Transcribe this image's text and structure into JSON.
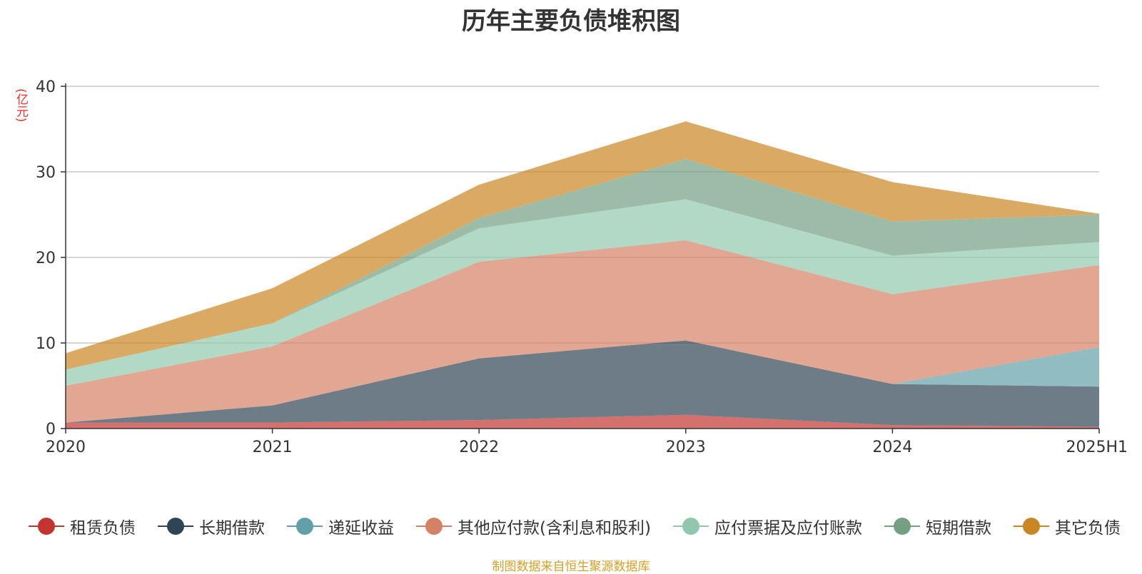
{
  "chart_data": {
    "type": "area",
    "stacked": true,
    "title": "历年主要负债堆积图",
    "unit_label": "(亿元)",
    "categories": [
      "2020",
      "2021",
      "2022",
      "2023",
      "2024",
      "2025H1"
    ],
    "ylim": [
      0,
      40
    ],
    "yticks": [
      0,
      10,
      20,
      30,
      40
    ],
    "grid": true,
    "legend_position": "bottom",
    "series": [
      {
        "name": "租赁负债",
        "color": "#c23531",
        "values": [
          0.7,
          0.7,
          1.0,
          1.6,
          0.4,
          0.2
        ]
      },
      {
        "name": "长期借款",
        "color": "#2f4554",
        "values": [
          0.0,
          2.0,
          7.2,
          8.7,
          4.8,
          4.7
        ]
      },
      {
        "name": "递延收益",
        "color": "#61a0a8",
        "values": [
          0.0,
          0.0,
          0.0,
          0.0,
          0.0,
          4.6
        ]
      },
      {
        "name": "其他应付款(含利息和股利)",
        "color": "#d48265",
        "values": [
          4.3,
          6.9,
          11.3,
          11.7,
          10.5,
          9.6
        ]
      },
      {
        "name": "应付票据及应付账款",
        "color": "#91c7ae",
        "values": [
          1.9,
          2.7,
          3.9,
          4.8,
          4.5,
          2.7
        ]
      },
      {
        "name": "短期借款",
        "color": "#749f83",
        "values": [
          0.0,
          0.0,
          1.2,
          4.7,
          4.0,
          3.2
        ]
      },
      {
        "name": "其它负债",
        "color": "#ca8622",
        "values": [
          1.9,
          4.1,
          3.9,
          4.4,
          4.6,
          0.1
        ]
      }
    ],
    "source_note": "制图数据来自恒生聚源数据库"
  }
}
